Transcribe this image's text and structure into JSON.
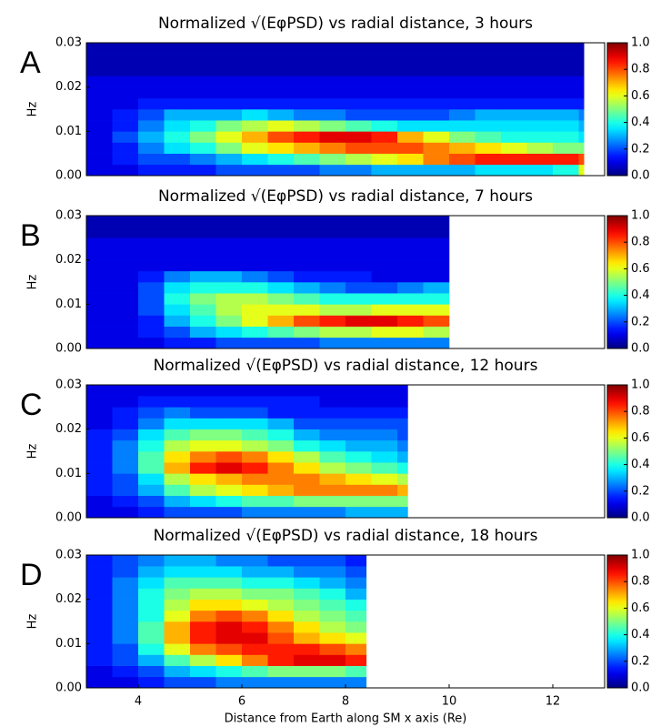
{
  "chart_data": [
    {
      "type": "heatmap",
      "label": "A",
      "title": "Normalized √(EφPSD) vs radial distance, 3 hours",
      "ylabel": "Hz",
      "colormap": "jet",
      "xlim": [
        3,
        13
      ],
      "ylim": [
        0,
        0.03
      ],
      "yticks": [
        {
          "value": 0,
          "label": "0.00"
        },
        {
          "value": 0.01,
          "label": "0.01"
        },
        {
          "value": 0.02,
          "label": "0.02"
        },
        {
          "value": 0.03,
          "label": "0.03"
        }
      ],
      "zlim": [
        0,
        1
      ],
      "zticks": [
        {
          "value": 0,
          "label": "0.0"
        },
        {
          "value": 0.2,
          "label": "0.2"
        },
        {
          "value": 0.4,
          "label": "0.4"
        },
        {
          "value": 0.6,
          "label": "0.6"
        },
        {
          "value": 0.8,
          "label": "0.8"
        },
        {
          "value": 1,
          "label": "1.0"
        }
      ],
      "x_edges": [
        3,
        3.5,
        4,
        4.5,
        5,
        5.5,
        6,
        6.5,
        7,
        7.5,
        8,
        8.5,
        9,
        9.5,
        10,
        10.5,
        11,
        11.5,
        12,
        12.5,
        12.6
      ],
      "y_edges": [
        0,
        0.0025,
        0.005,
        0.0075,
        0.01,
        0.0125,
        0.015,
        0.0175,
        0.02,
        0.0225,
        0.025,
        0.0275,
        0.03
      ],
      "z": [
        [
          0.1,
          0.1,
          0.15,
          0.15,
          0.15,
          0.2,
          0.2,
          0.2,
          0.2,
          0.25,
          0.25,
          0.3,
          0.3,
          0.3,
          0.3,
          0.35,
          0.35,
          0.35,
          0.4,
          0.6
        ],
        [
          0.1,
          0.15,
          0.2,
          0.2,
          0.25,
          0.3,
          0.35,
          0.4,
          0.45,
          0.5,
          0.55,
          0.6,
          0.65,
          0.75,
          0.8,
          0.85,
          0.85,
          0.85,
          0.85,
          0.8
        ],
        [
          0.1,
          0.15,
          0.25,
          0.35,
          0.4,
          0.5,
          0.6,
          0.65,
          0.7,
          0.75,
          0.8,
          0.8,
          0.8,
          0.75,
          0.7,
          0.65,
          0.6,
          0.55,
          0.5,
          0.5
        ],
        [
          0.1,
          0.2,
          0.3,
          0.4,
          0.5,
          0.6,
          0.7,
          0.8,
          0.85,
          0.9,
          0.9,
          0.85,
          0.7,
          0.6,
          0.5,
          0.45,
          0.4,
          0.4,
          0.4,
          0.35
        ],
        [
          0.1,
          0.15,
          0.25,
          0.35,
          0.4,
          0.5,
          0.55,
          0.6,
          0.55,
          0.5,
          0.45,
          0.4,
          0.35,
          0.35,
          0.35,
          0.35,
          0.35,
          0.35,
          0.35,
          0.3
        ],
        [
          0.1,
          0.15,
          0.2,
          0.3,
          0.3,
          0.3,
          0.35,
          0.3,
          0.25,
          0.25,
          0.2,
          0.2,
          0.2,
          0.2,
          0.25,
          0.3,
          0.3,
          0.3,
          0.3,
          0.25
        ],
        [
          0.1,
          0.1,
          0.15,
          0.15,
          0.15,
          0.15,
          0.15,
          0.15,
          0.15,
          0.15,
          0.15,
          0.15,
          0.15,
          0.15,
          0.15,
          0.15,
          0.15,
          0.15,
          0.15,
          0.15
        ],
        [
          0.1,
          0.1,
          0.1,
          0.1,
          0.1,
          0.1,
          0.1,
          0.1,
          0.1,
          0.1,
          0.1,
          0.1,
          0.1,
          0.1,
          0.1,
          0.1,
          0.1,
          0.1,
          0.1,
          0.1
        ],
        [
          0.1,
          0.1,
          0.1,
          0.1,
          0.1,
          0.1,
          0.1,
          0.1,
          0.1,
          0.1,
          0.1,
          0.1,
          0.1,
          0.1,
          0.1,
          0.1,
          0.1,
          0.1,
          0.1,
          0.1
        ],
        [
          0.05,
          0.05,
          0.05,
          0.05,
          0.05,
          0.05,
          0.05,
          0.05,
          0.05,
          0.05,
          0.05,
          0.05,
          0.05,
          0.05,
          0.05,
          0.05,
          0.05,
          0.05,
          0.05,
          0.05
        ],
        [
          0.05,
          0.05,
          0.05,
          0.05,
          0.05,
          0.05,
          0.05,
          0.05,
          0.05,
          0.05,
          0.05,
          0.05,
          0.05,
          0.05,
          0.05,
          0.05,
          0.05,
          0.05,
          0.05,
          0.05
        ],
        [
          0.05,
          0.05,
          0.05,
          0.05,
          0.05,
          0.05,
          0.05,
          0.05,
          0.05,
          0.05,
          0.05,
          0.05,
          0.05,
          0.05,
          0.05,
          0.05,
          0.05,
          0.05,
          0.05,
          0.05
        ]
      ]
    },
    {
      "type": "heatmap",
      "label": "B",
      "title": "Normalized √(EφPSD) vs radial distance, 7 hours",
      "ylabel": "Hz",
      "colormap": "jet",
      "xlim": [
        3,
        13
      ],
      "ylim": [
        0,
        0.03
      ],
      "yticks": [
        {
          "value": 0,
          "label": "0.00"
        },
        {
          "value": 0.01,
          "label": "0.01"
        },
        {
          "value": 0.02,
          "label": "0.02"
        },
        {
          "value": 0.03,
          "label": "0.03"
        }
      ],
      "zlim": [
        0,
        1
      ],
      "zticks": [
        {
          "value": 0,
          "label": "0.0"
        },
        {
          "value": 0.2,
          "label": "0.2"
        },
        {
          "value": 0.4,
          "label": "0.4"
        },
        {
          "value": 0.6,
          "label": "0.6"
        },
        {
          "value": 0.8,
          "label": "0.8"
        },
        {
          "value": 1,
          "label": "1.0"
        }
      ],
      "x_edges": [
        3,
        3.5,
        4,
        4.5,
        5,
        5.5,
        6,
        6.5,
        7,
        7.5,
        8,
        8.5,
        9,
        9.5,
        10
      ],
      "y_edges": [
        0,
        0.0025,
        0.005,
        0.0075,
        0.01,
        0.0125,
        0.015,
        0.0175,
        0.02,
        0.0225,
        0.025,
        0.0275,
        0.03
      ],
      "z": [
        [
          0.1,
          0.1,
          0.1,
          0.15,
          0.15,
          0.2,
          0.2,
          0.2,
          0.2,
          0.25,
          0.25,
          0.25,
          0.25,
          0.25
        ],
        [
          0.1,
          0.1,
          0.15,
          0.2,
          0.3,
          0.35,
          0.4,
          0.45,
          0.5,
          0.55,
          0.55,
          0.6,
          0.6,
          0.55
        ],
        [
          0.1,
          0.1,
          0.15,
          0.3,
          0.4,
          0.5,
          0.6,
          0.7,
          0.8,
          0.85,
          0.9,
          0.9,
          0.85,
          0.8
        ],
        [
          0.1,
          0.1,
          0.2,
          0.35,
          0.45,
          0.55,
          0.6,
          0.6,
          0.6,
          0.55,
          0.55,
          0.6,
          0.6,
          0.6
        ],
        [
          0.1,
          0.1,
          0.2,
          0.4,
          0.5,
          0.55,
          0.55,
          0.5,
          0.45,
          0.4,
          0.4,
          0.4,
          0.4,
          0.4
        ],
        [
          0.1,
          0.1,
          0.2,
          0.35,
          0.4,
          0.4,
          0.4,
          0.35,
          0.3,
          0.25,
          0.2,
          0.2,
          0.25,
          0.3
        ],
        [
          0.1,
          0.1,
          0.15,
          0.25,
          0.3,
          0.3,
          0.25,
          0.2,
          0.15,
          0.15,
          0.15,
          0.1,
          0.1,
          0.1
        ],
        [
          0.1,
          0.1,
          0.1,
          0.1,
          0.1,
          0.1,
          0.1,
          0.1,
          0.1,
          0.1,
          0.1,
          0.1,
          0.1,
          0.1
        ],
        [
          0.1,
          0.1,
          0.1,
          0.1,
          0.1,
          0.1,
          0.1,
          0.1,
          0.1,
          0.1,
          0.1,
          0.1,
          0.1,
          0.1
        ],
        [
          0.1,
          0.1,
          0.1,
          0.1,
          0.1,
          0.1,
          0.1,
          0.1,
          0.1,
          0.1,
          0.1,
          0.1,
          0.1,
          0.1
        ],
        [
          0.05,
          0.05,
          0.05,
          0.05,
          0.05,
          0.05,
          0.05,
          0.05,
          0.05,
          0.05,
          0.05,
          0.05,
          0.05,
          0.05
        ],
        [
          0.05,
          0.05,
          0.05,
          0.05,
          0.05,
          0.05,
          0.05,
          0.05,
          0.05,
          0.05,
          0.05,
          0.05,
          0.05,
          0.05
        ]
      ]
    },
    {
      "type": "heatmap",
      "label": "C",
      "title": "Normalized √(EφPSD) vs radial distance, 12 hours",
      "ylabel": "Hz",
      "colormap": "jet",
      "xlim": [
        3,
        13
      ],
      "ylim": [
        0,
        0.03
      ],
      "yticks": [
        {
          "value": 0,
          "label": "0.00"
        },
        {
          "value": 0.01,
          "label": "0.01"
        },
        {
          "value": 0.02,
          "label": "0.02"
        },
        {
          "value": 0.03,
          "label": "0.03"
        }
      ],
      "zlim": [
        0,
        1
      ],
      "zticks": [
        {
          "value": 0,
          "label": "0.0"
        },
        {
          "value": 0.2,
          "label": "0.2"
        },
        {
          "value": 0.4,
          "label": "0.4"
        },
        {
          "value": 0.6,
          "label": "0.6"
        },
        {
          "value": 0.8,
          "label": "0.8"
        },
        {
          "value": 1,
          "label": "1.0"
        }
      ],
      "x_edges": [
        3,
        3.5,
        4,
        4.5,
        5,
        5.5,
        6,
        6.5,
        7,
        7.5,
        8,
        8.5,
        9,
        9.2
      ],
      "y_edges": [
        0,
        0.0025,
        0.005,
        0.0075,
        0.01,
        0.0125,
        0.015,
        0.0175,
        0.02,
        0.0225,
        0.025,
        0.0275,
        0.03
      ],
      "z": [
        [
          0.1,
          0.1,
          0.15,
          0.2,
          0.2,
          0.2,
          0.25,
          0.25,
          0.25,
          0.25,
          0.3,
          0.3,
          0.3
        ],
        [
          0.1,
          0.15,
          0.2,
          0.3,
          0.35,
          0.4,
          0.45,
          0.45,
          0.5,
          0.5,
          0.5,
          0.5,
          0.5
        ],
        [
          0.15,
          0.2,
          0.3,
          0.45,
          0.55,
          0.6,
          0.65,
          0.7,
          0.75,
          0.75,
          0.75,
          0.75,
          0.7
        ],
        [
          0.15,
          0.2,
          0.35,
          0.55,
          0.65,
          0.7,
          0.75,
          0.75,
          0.75,
          0.7,
          0.65,
          0.6,
          0.55
        ],
        [
          0.15,
          0.25,
          0.45,
          0.7,
          0.85,
          0.9,
          0.85,
          0.75,
          0.65,
          0.55,
          0.5,
          0.45,
          0.4
        ],
        [
          0.15,
          0.25,
          0.45,
          0.65,
          0.75,
          0.8,
          0.75,
          0.65,
          0.55,
          0.45,
          0.4,
          0.35,
          0.3
        ],
        [
          0.15,
          0.25,
          0.4,
          0.55,
          0.6,
          0.6,
          0.55,
          0.5,
          0.4,
          0.35,
          0.3,
          0.3,
          0.25
        ],
        [
          0.15,
          0.2,
          0.35,
          0.45,
          0.5,
          0.5,
          0.45,
          0.4,
          0.3,
          0.25,
          0.25,
          0.25,
          0.2
        ],
        [
          0.1,
          0.15,
          0.25,
          0.35,
          0.35,
          0.35,
          0.35,
          0.3,
          0.2,
          0.2,
          0.2,
          0.2,
          0.2
        ],
        [
          0.1,
          0.15,
          0.2,
          0.25,
          0.2,
          0.2,
          0.2,
          0.15,
          0.15,
          0.15,
          0.15,
          0.15,
          0.15
        ],
        [
          0.1,
          0.1,
          0.15,
          0.15,
          0.15,
          0.15,
          0.15,
          0.15,
          0.15,
          0.1,
          0.1,
          0.1,
          0.1
        ],
        [
          0.1,
          0.1,
          0.1,
          0.1,
          0.1,
          0.1,
          0.1,
          0.1,
          0.1,
          0.1,
          0.1,
          0.1,
          0.1
        ]
      ]
    },
    {
      "type": "heatmap",
      "label": "D",
      "title": "Normalized √(EφPSD) vs radial distance, 18 hours",
      "ylabel": "Hz",
      "colormap": "jet",
      "xlabel": "Distance from Earth along SM x axis (Re)",
      "xlim": [
        3,
        13
      ],
      "ylim": [
        0,
        0.03
      ],
      "xticks": [
        4,
        6,
        8,
        10,
        12
      ],
      "yticks": [
        {
          "value": 0,
          "label": "0.00"
        },
        {
          "value": 0.01,
          "label": "0.01"
        },
        {
          "value": 0.02,
          "label": "0.02"
        },
        {
          "value": 0.03,
          "label": "0.03"
        }
      ],
      "zlim": [
        0,
        1
      ],
      "zticks": [
        {
          "value": 0,
          "label": "0.0"
        },
        {
          "value": 0.2,
          "label": "0.2"
        },
        {
          "value": 0.4,
          "label": "0.4"
        },
        {
          "value": 0.6,
          "label": "0.6"
        },
        {
          "value": 0.8,
          "label": "0.8"
        },
        {
          "value": 1,
          "label": "1.0"
        }
      ],
      "x_edges": [
        3,
        3.5,
        4,
        4.5,
        5,
        5.5,
        6,
        6.5,
        7,
        7.5,
        8,
        8.4
      ],
      "y_edges": [
        0,
        0.0025,
        0.005,
        0.0075,
        0.01,
        0.0125,
        0.015,
        0.0175,
        0.02,
        0.0225,
        0.025,
        0.0275,
        0.03
      ],
      "z": [
        [
          0.1,
          0.1,
          0.15,
          0.2,
          0.2,
          0.25,
          0.25,
          0.25,
          0.25,
          0.25,
          0.25
        ],
        [
          0.1,
          0.15,
          0.2,
          0.3,
          0.35,
          0.4,
          0.45,
          0.5,
          0.5,
          0.5,
          0.45
        ],
        [
          0.15,
          0.2,
          0.3,
          0.45,
          0.55,
          0.65,
          0.75,
          0.85,
          0.9,
          0.9,
          0.85
        ],
        [
          0.15,
          0.2,
          0.4,
          0.6,
          0.75,
          0.8,
          0.85,
          0.85,
          0.85,
          0.8,
          0.75
        ],
        [
          0.15,
          0.25,
          0.45,
          0.7,
          0.85,
          0.9,
          0.9,
          0.8,
          0.7,
          0.65,
          0.6
        ],
        [
          0.15,
          0.25,
          0.45,
          0.7,
          0.85,
          0.9,
          0.85,
          0.75,
          0.65,
          0.55,
          0.5
        ],
        [
          0.15,
          0.25,
          0.4,
          0.6,
          0.75,
          0.8,
          0.75,
          0.65,
          0.55,
          0.5,
          0.45
        ],
        [
          0.15,
          0.25,
          0.4,
          0.55,
          0.65,
          0.65,
          0.6,
          0.55,
          0.5,
          0.45,
          0.4
        ],
        [
          0.15,
          0.25,
          0.4,
          0.5,
          0.55,
          0.55,
          0.5,
          0.5,
          0.45,
          0.4,
          0.3
        ],
        [
          0.15,
          0.25,
          0.35,
          0.45,
          0.45,
          0.45,
          0.4,
          0.4,
          0.35,
          0.3,
          0.25
        ],
        [
          0.15,
          0.2,
          0.3,
          0.35,
          0.35,
          0.35,
          0.3,
          0.3,
          0.25,
          0.25,
          0.2
        ],
        [
          0.15,
          0.2,
          0.25,
          0.3,
          0.3,
          0.25,
          0.25,
          0.2,
          0.2,
          0.2,
          0.15
        ]
      ]
    }
  ]
}
